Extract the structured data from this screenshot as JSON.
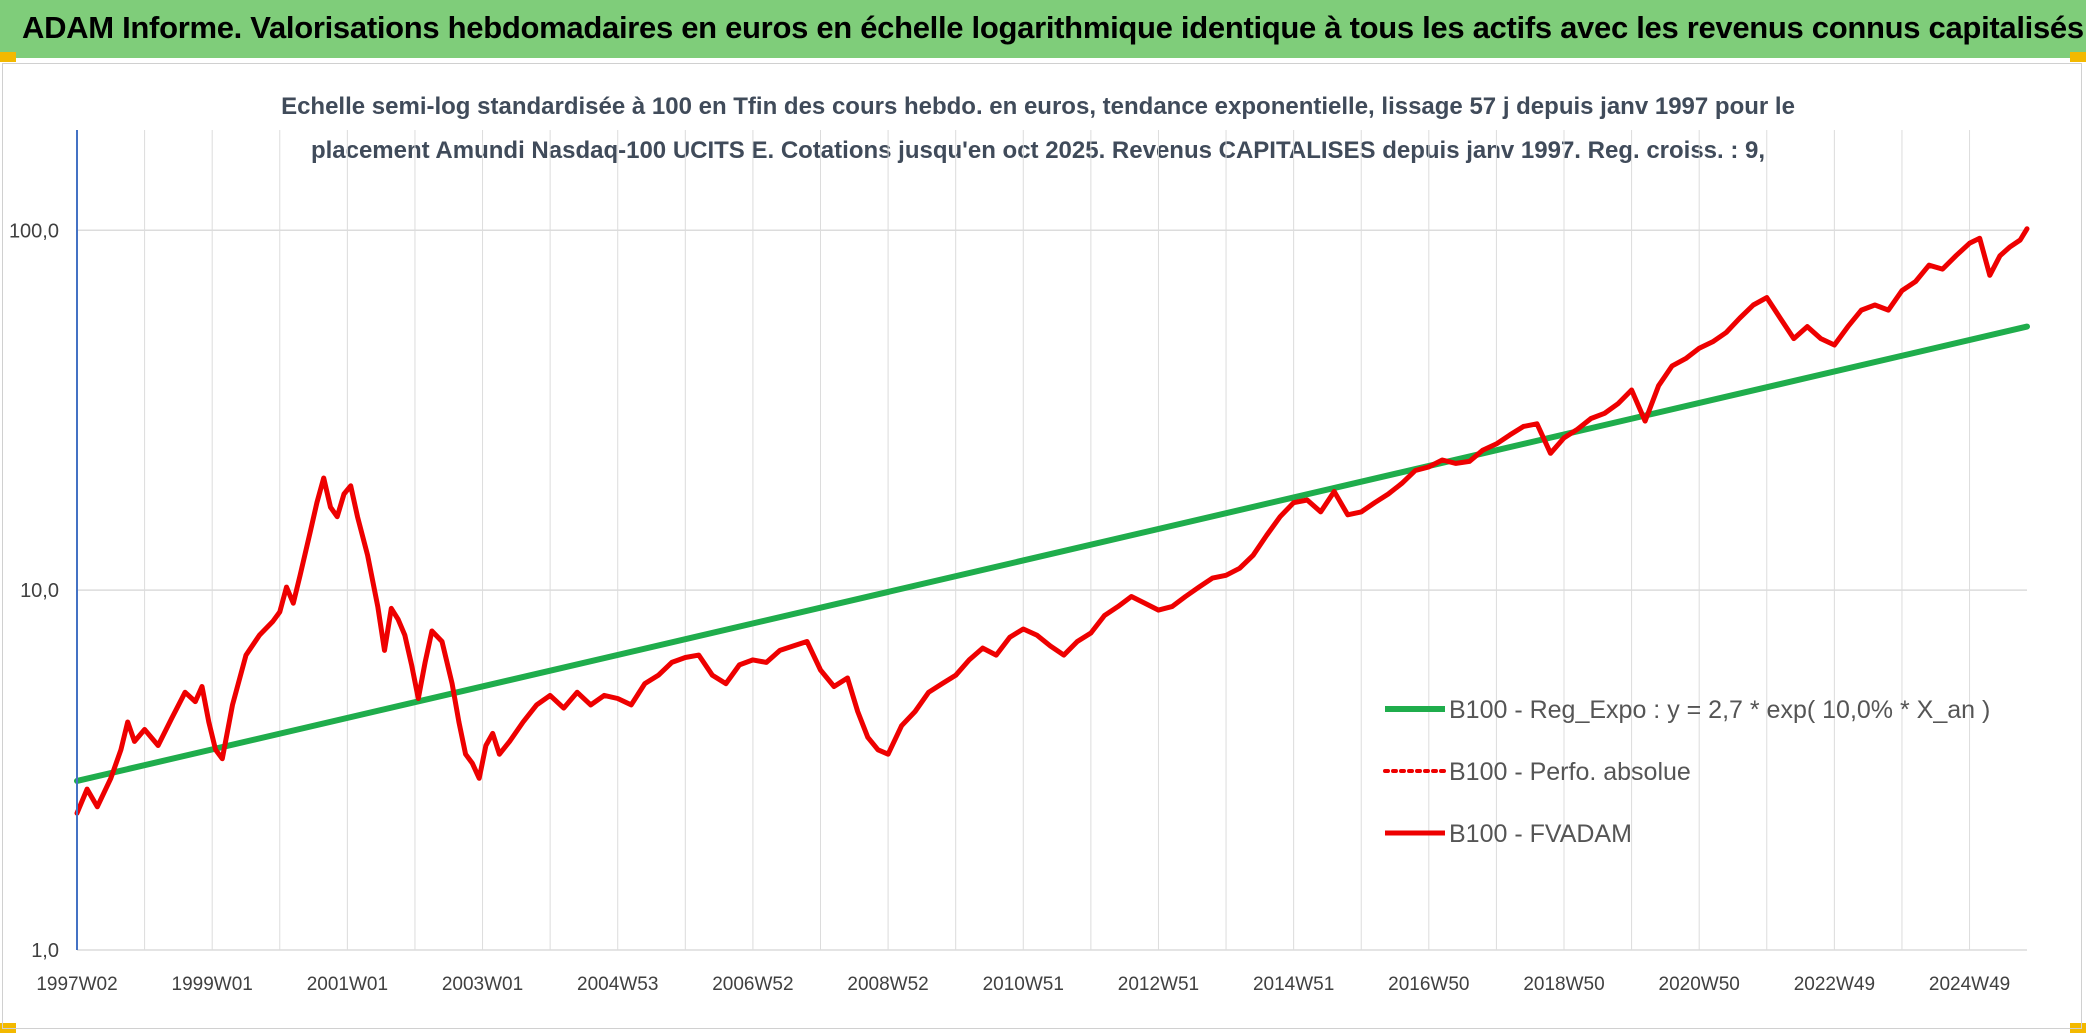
{
  "header": {
    "title": "ADAM Informe. Valorisations hebdomadaires en euros en échelle logarithmique identique à tous les actifs avec les revenus connus capitalisés"
  },
  "colors": {
    "banner": "#7fcd7a",
    "corner": "#f3b900",
    "regression": "#1fad4c",
    "fvadam": "#ee0000",
    "perfo": "#ee0000",
    "grid": "#dcdcdc",
    "yaxis": "#4472c4"
  },
  "chart_data": {
    "type": "line",
    "subtitle_line1": "Echelle semi-log standardisée à 100 en Tfin des cours hebdo. en euros, tendance exponentielle, lissage 57 j depuis janv 1997 pour le",
    "subtitle_line2": "placement Amundi Nasdaq-100 UCITS E. Cotations jusqu'en oct 2025. Revenus CAPITALISES depuis janv 1997. Reg. croiss. : 9,",
    "y_scale": "log",
    "ylim": [
      1,
      190
    ],
    "xlim": [
      1997.0,
      2025.85
    ],
    "y_ticks": [
      {
        "value": 1,
        "label": "1,0"
      },
      {
        "value": 10,
        "label": "10,0"
      },
      {
        "value": 100,
        "label": "100,0"
      }
    ],
    "x_ticks": [
      {
        "x": 1997.0,
        "label": "1997W02"
      },
      {
        "x": 1999.0,
        "label": "1999W01"
      },
      {
        "x": 2001.0,
        "label": "2001W01"
      },
      {
        "x": 2003.0,
        "label": "2003W01"
      },
      {
        "x": 2005.0,
        "label": "2004W53"
      },
      {
        "x": 2007.0,
        "label": "2006W52"
      },
      {
        "x": 2009.0,
        "label": "2008W52"
      },
      {
        "x": 2011.0,
        "label": "2010W51"
      },
      {
        "x": 2013.0,
        "label": "2012W51"
      },
      {
        "x": 2015.0,
        "label": "2014W51"
      },
      {
        "x": 2017.0,
        "label": "2016W50"
      },
      {
        "x": 2019.0,
        "label": "2018W50"
      },
      {
        "x": 2021.0,
        "label": "2020W50"
      },
      {
        "x": 2023.0,
        "label": "2022W49"
      },
      {
        "x": 2025.0,
        "label": "2024W49"
      }
    ],
    "grid": true,
    "legend_position": "right, inside plot",
    "series": [
      {
        "name": "B100 - Reg_Expo : y = 2,7 * exp( 10,0% *  X_an )",
        "style": "solid",
        "points": [
          [
            1997.0,
            2.95
          ],
          [
            2025.85,
            54.0
          ]
        ]
      },
      {
        "name": "B100 - Perfo. absolue",
        "style": "dotted",
        "points": []
      },
      {
        "name": "B100 - FVADAM",
        "style": "solid",
        "points": [
          [
            1997.0,
            2.4
          ],
          [
            1997.15,
            2.8
          ],
          [
            1997.3,
            2.5
          ],
          [
            1997.5,
            3.0
          ],
          [
            1997.65,
            3.6
          ],
          [
            1997.75,
            4.3
          ],
          [
            1997.85,
            3.8
          ],
          [
            1998.0,
            4.1
          ],
          [
            1998.2,
            3.7
          ],
          [
            1998.4,
            4.4
          ],
          [
            1998.6,
            5.2
          ],
          [
            1998.75,
            4.9
          ],
          [
            1998.85,
            5.4
          ],
          [
            1998.95,
            4.3
          ],
          [
            1999.05,
            3.6
          ],
          [
            1999.15,
            3.4
          ],
          [
            1999.3,
            4.8
          ],
          [
            1999.5,
            6.6
          ],
          [
            1999.7,
            7.5
          ],
          [
            1999.9,
            8.2
          ],
          [
            2000.0,
            8.7
          ],
          [
            2000.1,
            10.2
          ],
          [
            2000.2,
            9.2
          ],
          [
            2000.3,
            11.0
          ],
          [
            2000.45,
            14.5
          ],
          [
            2000.55,
            17.5
          ],
          [
            2000.65,
            20.5
          ],
          [
            2000.75,
            17.0
          ],
          [
            2000.85,
            16.0
          ],
          [
            2000.95,
            18.5
          ],
          [
            2001.05,
            19.5
          ],
          [
            2001.15,
            16.0
          ],
          [
            2001.3,
            12.5
          ],
          [
            2001.45,
            9.0
          ],
          [
            2001.55,
            6.8
          ],
          [
            2001.65,
            8.9
          ],
          [
            2001.75,
            8.3
          ],
          [
            2001.85,
            7.5
          ],
          [
            2001.95,
            6.2
          ],
          [
            2002.05,
            5.0
          ],
          [
            2002.15,
            6.3
          ],
          [
            2002.25,
            7.7
          ],
          [
            2002.4,
            7.2
          ],
          [
            2002.55,
            5.5
          ],
          [
            2002.65,
            4.3
          ],
          [
            2002.75,
            3.5
          ],
          [
            2002.85,
            3.3
          ],
          [
            2002.95,
            3.0
          ],
          [
            2003.05,
            3.7
          ],
          [
            2003.15,
            4.0
          ],
          [
            2003.25,
            3.5
          ],
          [
            2003.4,
            3.8
          ],
          [
            2003.6,
            4.3
          ],
          [
            2003.8,
            4.8
          ],
          [
            2004.0,
            5.1
          ],
          [
            2004.2,
            4.7
          ],
          [
            2004.4,
            5.2
          ],
          [
            2004.6,
            4.8
          ],
          [
            2004.8,
            5.1
          ],
          [
            2005.0,
            5.0
          ],
          [
            2005.2,
            4.8
          ],
          [
            2005.4,
            5.5
          ],
          [
            2005.6,
            5.8
          ],
          [
            2005.8,
            6.3
          ],
          [
            2006.0,
            6.5
          ],
          [
            2006.2,
            6.6
          ],
          [
            2006.4,
            5.8
          ],
          [
            2006.6,
            5.5
          ],
          [
            2006.8,
            6.2
          ],
          [
            2007.0,
            6.4
          ],
          [
            2007.2,
            6.3
          ],
          [
            2007.4,
            6.8
          ],
          [
            2007.6,
            7.0
          ],
          [
            2007.8,
            7.2
          ],
          [
            2008.0,
            6.0
          ],
          [
            2008.2,
            5.4
          ],
          [
            2008.4,
            5.7
          ],
          [
            2008.55,
            4.6
          ],
          [
            2008.7,
            3.9
          ],
          [
            2008.85,
            3.6
          ],
          [
            2009.0,
            3.5
          ],
          [
            2009.2,
            4.2
          ],
          [
            2009.4,
            4.6
          ],
          [
            2009.6,
            5.2
          ],
          [
            2009.8,
            5.5
          ],
          [
            2010.0,
            5.8
          ],
          [
            2010.2,
            6.4
          ],
          [
            2010.4,
            6.9
          ],
          [
            2010.6,
            6.6
          ],
          [
            2010.8,
            7.4
          ],
          [
            2011.0,
            7.8
          ],
          [
            2011.2,
            7.5
          ],
          [
            2011.4,
            7.0
          ],
          [
            2011.6,
            6.6
          ],
          [
            2011.8,
            7.2
          ],
          [
            2012.0,
            7.6
          ],
          [
            2012.2,
            8.5
          ],
          [
            2012.4,
            9.0
          ],
          [
            2012.6,
            9.6
          ],
          [
            2012.8,
            9.2
          ],
          [
            2013.0,
            8.8
          ],
          [
            2013.2,
            9.0
          ],
          [
            2013.4,
            9.6
          ],
          [
            2013.6,
            10.2
          ],
          [
            2013.8,
            10.8
          ],
          [
            2014.0,
            11.0
          ],
          [
            2014.2,
            11.5
          ],
          [
            2014.4,
            12.5
          ],
          [
            2014.6,
            14.2
          ],
          [
            2014.8,
            16.0
          ],
          [
            2015.0,
            17.5
          ],
          [
            2015.2,
            17.8
          ],
          [
            2015.4,
            16.5
          ],
          [
            2015.6,
            18.8
          ],
          [
            2015.8,
            16.2
          ],
          [
            2016.0,
            16.5
          ],
          [
            2016.2,
            17.5
          ],
          [
            2016.4,
            18.5
          ],
          [
            2016.6,
            19.8
          ],
          [
            2016.8,
            21.5
          ],
          [
            2017.0,
            22.0
          ],
          [
            2017.2,
            23.0
          ],
          [
            2017.4,
            22.5
          ],
          [
            2017.6,
            22.8
          ],
          [
            2017.8,
            24.5
          ],
          [
            2018.0,
            25.5
          ],
          [
            2018.2,
            27.0
          ],
          [
            2018.4,
            28.5
          ],
          [
            2018.6,
            29.0
          ],
          [
            2018.8,
            24.0
          ],
          [
            2019.0,
            26.5
          ],
          [
            2019.2,
            28.0
          ],
          [
            2019.4,
            30.0
          ],
          [
            2019.6,
            31.0
          ],
          [
            2019.8,
            33.0
          ],
          [
            2020.0,
            36.0
          ],
          [
            2020.2,
            29.5
          ],
          [
            2020.4,
            37.0
          ],
          [
            2020.6,
            42.0
          ],
          [
            2020.8,
            44.0
          ],
          [
            2021.0,
            47.0
          ],
          [
            2021.2,
            49.0
          ],
          [
            2021.4,
            52.0
          ],
          [
            2021.6,
            57.0
          ],
          [
            2021.8,
            62.0
          ],
          [
            2022.0,
            65.0
          ],
          [
            2022.2,
            57.0
          ],
          [
            2022.4,
            50.0
          ],
          [
            2022.6,
            54.0
          ],
          [
            2022.8,
            50.0
          ],
          [
            2023.0,
            48.0
          ],
          [
            2023.2,
            54.0
          ],
          [
            2023.4,
            60.0
          ],
          [
            2023.6,
            62.0
          ],
          [
            2023.8,
            60.0
          ],
          [
            2024.0,
            68.0
          ],
          [
            2024.2,
            72.0
          ],
          [
            2024.4,
            80.0
          ],
          [
            2024.6,
            78.0
          ],
          [
            2024.8,
            85.0
          ],
          [
            2025.0,
            92.0
          ],
          [
            2025.15,
            95.0
          ],
          [
            2025.3,
            75.0
          ],
          [
            2025.45,
            85.0
          ],
          [
            2025.6,
            90.0
          ],
          [
            2025.75,
            94.0
          ],
          [
            2025.85,
            101.0
          ]
        ]
      }
    ]
  }
}
